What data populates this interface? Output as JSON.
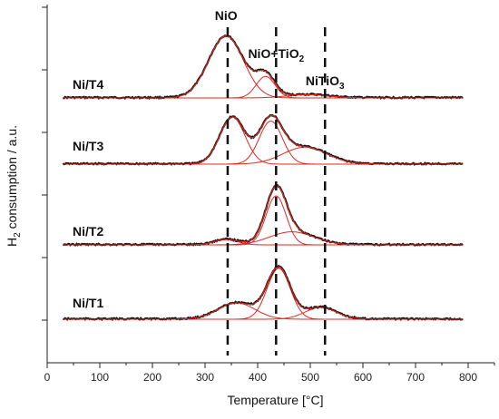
{
  "chart_data": {
    "type": "line",
    "title": "",
    "xlabel": "Temperature [°C]",
    "ylabel_main": "H",
    "ylabel_sub": "2",
    "ylabel_rest": " consumption / a.u.",
    "xlim": [
      0,
      850
    ],
    "x_ticks": [
      0,
      100,
      200,
      300,
      400,
      500,
      600,
      700,
      800
    ],
    "y_ticks": 6,
    "grid": false,
    "annotations": [
      {
        "text": "NiO",
        "sub": "",
        "tail": "",
        "x": 340
      },
      {
        "text": "NiO+TiO",
        "sub": "2",
        "tail": "",
        "x": 435
      },
      {
        "text": "NiTiO",
        "sub": "3",
        "tail": "",
        "x": 528
      }
    ],
    "reference_lines_x": [
      343,
      435,
      528
    ],
    "x_range_measured": [
      30,
      790
    ],
    "series": [
      {
        "name": "Ni/T4",
        "peaks": [
          {
            "center": 340,
            "height": 0.95,
            "width": 33
          },
          {
            "center": 415,
            "height": 0.33,
            "width": 18
          },
          {
            "center": 495,
            "height": 0.05,
            "width": 40
          }
        ]
      },
      {
        "name": "Ni/T3",
        "peaks": [
          {
            "center": 352,
            "height": 0.72,
            "width": 24
          },
          {
            "center": 425,
            "height": 0.66,
            "width": 22
          },
          {
            "center": 490,
            "height": 0.26,
            "width": 42
          }
        ]
      },
      {
        "name": "Ni/T2",
        "peaks": [
          {
            "center": 340,
            "height": 0.08,
            "width": 22
          },
          {
            "center": 435,
            "height": 0.75,
            "width": 19
          },
          {
            "center": 465,
            "height": 0.2,
            "width": 42
          }
        ]
      },
      {
        "name": "Ni/T1",
        "peaks": [
          {
            "center": 360,
            "height": 0.25,
            "width": 35
          },
          {
            "center": 440,
            "height": 0.78,
            "width": 22
          },
          {
            "center": 520,
            "height": 0.18,
            "width": 30
          }
        ]
      }
    ]
  },
  "colors": {
    "measured": "#111111",
    "fit": "#e0281e"
  }
}
